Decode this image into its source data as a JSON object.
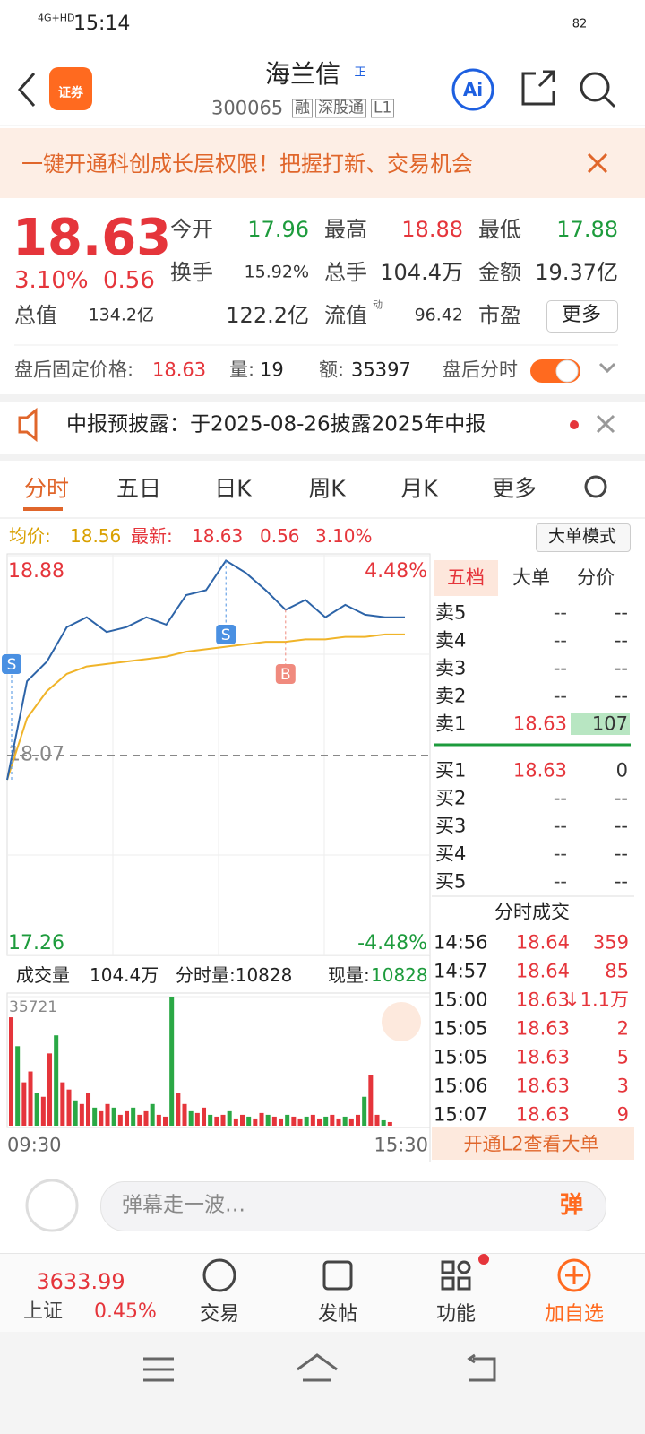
{
  "status_bar": {
    "time": "15:14",
    "network": "4G+HD",
    "battery": "82"
  },
  "header": {
    "logo": "证券",
    "title": "海兰信",
    "badge": "正",
    "code": "300065",
    "tags": [
      "融",
      "深股通",
      "L1"
    ],
    "ai": "Ai"
  },
  "banner": {
    "text": "一键开通科创成长层权限！把握打新、交易机会"
  },
  "quote": {
    "price": "18.63",
    "change_pct": "3.10%",
    "change": "0.56",
    "stats": [
      [
        {
          "label": "今开",
          "value": "17.96"
        },
        {
          "label": "最高",
          "value": "18.88"
        },
        {
          "label": "最低",
          "value": "17.88"
        }
      ],
      [
        {
          "label": "换手",
          "value": "15.92%"
        },
        {
          "label": "总手",
          "value": "104.4万"
        },
        {
          "label": "金额",
          "value": "19.37亿"
        }
      ],
      [
        {
          "label": "总值",
          "value": "134.2亿"
        },
        {
          "label": "流值",
          "value": "122.2亿"
        },
        {
          "label": "市盈",
          "value": "96.42",
          "sup": "动"
        }
      ]
    ],
    "more": "更多"
  },
  "after_hours": {
    "price_label": "盘后固定价格:",
    "price": "18.63",
    "volume_label": "量:",
    "volume": "19",
    "amount_label": "额:",
    "amount": "35397",
    "chart_label": "盘后分时"
  },
  "notice": {
    "text": "中报预披露：于2025-08-26披露2025年中报"
  },
  "tabs": [
    "分时",
    "五日",
    "日K",
    "周K",
    "月K",
    "更多"
  ],
  "chart_info": {
    "avg_label": "均价:",
    "avg": "18.56",
    "last_label": "最新:",
    "last": "18.63",
    "change": "0.56",
    "change_pct": "3.10%",
    "mode": "大单模式"
  },
  "intraday": {
    "ylim": [
      17.26,
      18.88
    ],
    "yticks": [
      18.88,
      18.07,
      17.26
    ],
    "pct_labels": [
      "4.48%",
      "-4.48%"
    ],
    "price": [
      17.97,
      18.37,
      18.45,
      18.59,
      18.63,
      18.57,
      18.59,
      18.63,
      18.6,
      18.72,
      18.74,
      18.86,
      18.81,
      18.74,
      18.66,
      18.7,
      18.63,
      18.68,
      18.64,
      18.63,
      18.63
    ],
    "avg": [
      17.97,
      18.22,
      18.33,
      18.4,
      18.43,
      18.44,
      18.45,
      18.46,
      18.47,
      18.49,
      18.5,
      18.51,
      18.52,
      18.53,
      18.53,
      18.54,
      18.54,
      18.55,
      18.55,
      18.56,
      18.56
    ],
    "markers": [
      "S",
      "S",
      "B"
    ],
    "x_labels": [
      "09:30",
      "15:30"
    ]
  },
  "volume": {
    "label": "成交量",
    "total": "104.4万",
    "minute": "分时量:10828",
    "current_label": "现量:",
    "current": "10828",
    "ylim": [
      0,
      35721
    ],
    "yticks": [
      35721
    ],
    "values": [
      30000,
      22000,
      12000,
      15000,
      9000,
      8000,
      20000,
      25000,
      12000,
      10000,
      7000,
      6000,
      9000,
      5000,
      4000,
      6000,
      5000,
      3000,
      4000,
      5000,
      3000,
      4000,
      6000,
      3000,
      2500,
      35721,
      9000,
      6000,
      4000,
      3500,
      5000,
      3000,
      2500,
      3000,
      4000,
      2000,
      3000,
      2500,
      2000,
      3500,
      3000,
      2500,
      2000,
      3000,
      2500,
      2000,
      2500,
      3000,
      2000,
      2500,
      3000,
      2000,
      2500,
      2000,
      3000,
      8000,
      14000,
      3000,
      1500,
      1000
    ]
  },
  "order_book": {
    "tabs": [
      "五档",
      "大单",
      "分价"
    ],
    "asks": [
      {
        "label": "卖5",
        "price": "--",
        "volume": "--"
      },
      {
        "label": "卖4",
        "price": "--",
        "volume": "--"
      },
      {
        "label": "卖3",
        "price": "--",
        "volume": "--"
      },
      {
        "label": "卖2",
        "price": "--",
        "volume": "--"
      },
      {
        "label": "卖1",
        "price": "18.63",
        "volume": "107"
      }
    ],
    "bids": [
      {
        "label": "买1",
        "price": "18.63",
        "volume": "0"
      },
      {
        "label": "买2",
        "price": "--",
        "volume": "--"
      },
      {
        "label": "买3",
        "price": "--",
        "volume": "--"
      },
      {
        "label": "买4",
        "price": "--",
        "volume": "--"
      },
      {
        "label": "买5",
        "price": "--",
        "volume": "--"
      }
    ]
  },
  "trades": {
    "title": "分时成交",
    "rows": [
      [
        "14:56",
        "18.64",
        "359"
      ],
      [
        "14:57",
        "18.64",
        "85"
      ],
      [
        "15:00",
        "18.63",
        "↓1.1万"
      ],
      [
        "15:05",
        "18.63",
        "2"
      ],
      [
        "15:05",
        "18.63",
        "5"
      ],
      [
        "15:06",
        "18.63",
        "3"
      ],
      [
        "15:07",
        "18.63",
        "9"
      ]
    ],
    "promo": "开通L2查看大单"
  },
  "comment": {
    "placeholder": "弹幕走一波…",
    "button": "弹"
  },
  "bottom_nav": {
    "index": {
      "value": "3633.99",
      "name": "上证",
      "change": "0.45%"
    },
    "items": [
      "交易",
      "发帖",
      "功能",
      "加自选"
    ]
  }
}
